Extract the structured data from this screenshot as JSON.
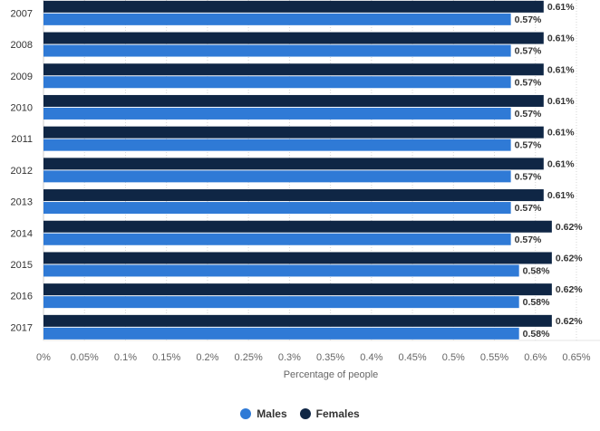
{
  "chart_data": {
    "type": "bar",
    "orientation": "horizontal",
    "categories": [
      "2007",
      "2008",
      "2009",
      "2010",
      "2011",
      "2012",
      "2013",
      "2014",
      "2015",
      "2016",
      "2017"
    ],
    "series": [
      {
        "name": "Females",
        "color": "#0f2645",
        "values": [
          0.61,
          0.61,
          0.61,
          0.61,
          0.61,
          0.61,
          0.61,
          0.62,
          0.62,
          0.62,
          0.62
        ],
        "labels": [
          "0.61%",
          "0.61%",
          "0.61%",
          "0.61%",
          "0.61%",
          "0.61%",
          "0.61%",
          "0.62%",
          "0.62%",
          "0.62%",
          "0.62%"
        ]
      },
      {
        "name": "Males",
        "color": "#2f7ad6",
        "values": [
          0.57,
          0.57,
          0.57,
          0.57,
          0.57,
          0.57,
          0.57,
          0.57,
          0.58,
          0.58,
          0.58
        ],
        "labels": [
          "0.57%",
          "0.57%",
          "0.57%",
          "0.57%",
          "0.57%",
          "0.57%",
          "0.57%",
          "0.57%",
          "0.58%",
          "0.58%",
          "0.58%"
        ]
      }
    ],
    "xlim": [
      0,
      0.65
    ],
    "x_ticks": [
      "0%",
      "0.05%",
      "0.1%",
      "0.15%",
      "0.2%",
      "0.25%",
      "0.3%",
      "0.35%",
      "0.4%",
      "0.45%",
      "0.5%",
      "0.55%",
      "0.6%",
      "0.65%"
    ],
    "xlabel": "Percentage of people",
    "grid": true,
    "legend": {
      "position": "bottom",
      "entries": [
        "Males",
        "Females"
      ]
    }
  },
  "legend_items": [
    {
      "label": "Males",
      "color": "#2f7ad6"
    },
    {
      "label": "Females",
      "color": "#0f2645"
    }
  ]
}
